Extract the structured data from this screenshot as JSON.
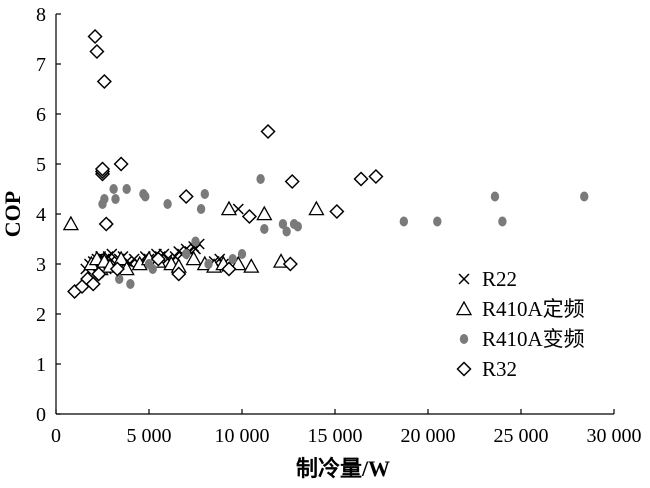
{
  "chart_data": {
    "type": "scatter",
    "xlabel": "制冷量/W",
    "ylabel": "COP",
    "xlim": [
      0,
      30000
    ],
    "ylim": [
      0,
      8
    ],
    "x_ticks": [
      0,
      5000,
      10000,
      15000,
      20000,
      25000,
      30000
    ],
    "x_tick_labels": [
      "0",
      "5 000",
      "10 000",
      "15 000",
      "20 000",
      "25 000",
      "30 000"
    ],
    "y_ticks": [
      0,
      1,
      2,
      3,
      4,
      5,
      6,
      7,
      8
    ],
    "y_tick_labels": [
      "0",
      "1",
      "2",
      "3",
      "4",
      "5",
      "6",
      "7",
      "8"
    ],
    "grid": false,
    "legend_position": "lower-right",
    "series": [
      {
        "name": "R22",
        "marker": "x",
        "color": "#000000",
        "points": [
          [
            1600,
            2.9
          ],
          [
            1800,
            3.0
          ],
          [
            2000,
            3.05
          ],
          [
            2100,
            2.85
          ],
          [
            2200,
            3.1
          ],
          [
            2300,
            2.95
          ],
          [
            2400,
            3.15
          ],
          [
            2500,
            3.0
          ],
          [
            2600,
            3.1
          ],
          [
            2700,
            2.9
          ],
          [
            2800,
            3.15
          ],
          [
            2900,
            3.05
          ],
          [
            3000,
            3.2
          ],
          [
            3200,
            3.0
          ],
          [
            3400,
            3.1
          ],
          [
            3600,
            3.15
          ],
          [
            3800,
            3.05
          ],
          [
            4000,
            3.0
          ],
          [
            4200,
            3.1
          ],
          [
            4500,
            3.0
          ],
          [
            4800,
            3.15
          ],
          [
            5000,
            3.1
          ],
          [
            5200,
            3.05
          ],
          [
            5400,
            3.2
          ],
          [
            5600,
            3.15
          ],
          [
            5800,
            3.2
          ],
          [
            6000,
            3.1
          ],
          [
            6200,
            3.05
          ],
          [
            6400,
            3.15
          ],
          [
            6600,
            3.25
          ],
          [
            6800,
            3.2
          ],
          [
            7000,
            3.3
          ],
          [
            7200,
            3.25
          ],
          [
            7400,
            3.35
          ],
          [
            7500,
            3.3
          ],
          [
            7700,
            3.4
          ],
          [
            8500,
            3.05
          ],
          [
            8800,
            3.1
          ],
          [
            9000,
            3.0
          ],
          [
            9200,
            2.95
          ],
          [
            9800,
            4.1
          ]
        ]
      },
      {
        "name": "R410A定频",
        "marker": "triangle",
        "color": "#000000",
        "points": [
          [
            800,
            3.8
          ],
          [
            1900,
            3.0
          ],
          [
            2200,
            3.1
          ],
          [
            2400,
            2.9
          ],
          [
            2600,
            3.05
          ],
          [
            2900,
            2.95
          ],
          [
            3500,
            3.1
          ],
          [
            3800,
            2.9
          ],
          [
            4500,
            3.0
          ],
          [
            5000,
            3.1
          ],
          [
            5500,
            3.05
          ],
          [
            6200,
            3.0
          ],
          [
            6600,
            2.95
          ],
          [
            7400,
            3.1
          ],
          [
            8000,
            3.0
          ],
          [
            8500,
            2.95
          ],
          [
            9000,
            3.0
          ],
          [
            9300,
            4.1
          ],
          [
            9800,
            3.0
          ],
          [
            10500,
            2.95
          ],
          [
            11200,
            4.0
          ],
          [
            12100,
            3.05
          ],
          [
            14000,
            4.1
          ]
        ]
      },
      {
        "name": "R410A变频",
        "marker": "circle",
        "color": "#7a7a7a",
        "points": [
          [
            2000,
            2.7
          ],
          [
            2200,
            2.75
          ],
          [
            2400,
            2.8
          ],
          [
            2500,
            4.2
          ],
          [
            2600,
            4.3
          ],
          [
            2800,
            3.8
          ],
          [
            3100,
            4.5
          ],
          [
            3200,
            4.3
          ],
          [
            3400,
            2.7
          ],
          [
            3800,
            4.5
          ],
          [
            4000,
            2.6
          ],
          [
            4700,
            4.4
          ],
          [
            4800,
            4.35
          ],
          [
            5000,
            3.0
          ],
          [
            5200,
            2.9
          ],
          [
            6000,
            4.2
          ],
          [
            7000,
            3.2
          ],
          [
            7500,
            3.45
          ],
          [
            7800,
            4.1
          ],
          [
            8000,
            4.4
          ],
          [
            8200,
            3.0
          ],
          [
            9500,
            3.1
          ],
          [
            10000,
            3.2
          ],
          [
            11000,
            4.7
          ],
          [
            11200,
            3.7
          ],
          [
            12200,
            3.8
          ],
          [
            12400,
            3.65
          ],
          [
            12800,
            3.8
          ],
          [
            13000,
            3.75
          ],
          [
            18700,
            3.85
          ],
          [
            20500,
            3.85
          ],
          [
            23600,
            4.35
          ],
          [
            24000,
            3.85
          ],
          [
            28400,
            4.35
          ]
        ]
      },
      {
        "name": "R32",
        "marker": "diamond",
        "color": "#000000",
        "points": [
          [
            1000,
            2.45
          ],
          [
            1400,
            2.55
          ],
          [
            1700,
            2.7
          ],
          [
            2000,
            2.6
          ],
          [
            2100,
            7.55
          ],
          [
            2200,
            7.25
          ],
          [
            2300,
            2.8
          ],
          [
            2500,
            4.8
          ],
          [
            2500,
            4.85
          ],
          [
            2500,
            4.9
          ],
          [
            2600,
            6.65
          ],
          [
            2700,
            3.8
          ],
          [
            3300,
            2.9
          ],
          [
            3500,
            5.0
          ],
          [
            5500,
            3.1
          ],
          [
            6600,
            2.8
          ],
          [
            7000,
            4.35
          ],
          [
            9300,
            2.9
          ],
          [
            10400,
            3.95
          ],
          [
            11400,
            5.65
          ],
          [
            12600,
            3.0
          ],
          [
            12700,
            4.65
          ],
          [
            15100,
            4.05
          ],
          [
            16400,
            4.7
          ],
          [
            17200,
            4.75
          ]
        ]
      }
    ]
  }
}
